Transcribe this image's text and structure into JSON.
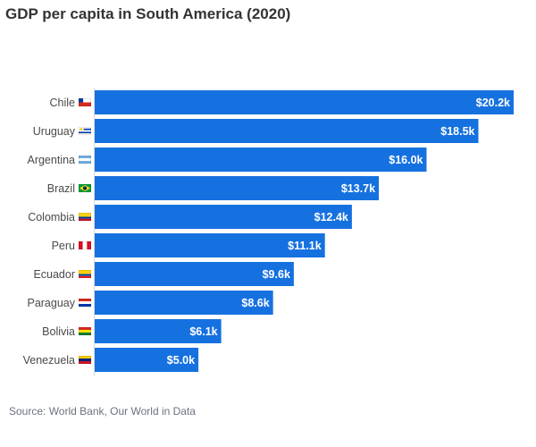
{
  "title": "GDP per capita in South America (2020)",
  "source": "Source: World Bank, Our World in Data",
  "colors": {
    "bar": "#1671e0",
    "bar_label": "#ffffff",
    "category_label": "#4a4a4a",
    "axis": "#d9d9d9"
  },
  "chart_data": {
    "type": "bar",
    "orientation": "horizontal",
    "title": "GDP per capita in South America (2020)",
    "xlabel": "",
    "ylabel": "",
    "categories": [
      "Chile",
      "Uruguay",
      "Argentina",
      "Brazil",
      "Colombia",
      "Peru",
      "Ecuador",
      "Paraguay",
      "Bolivia",
      "Venezuela"
    ],
    "flags": [
      {
        "type": "bicolor-h",
        "colors": [
          "#ffffff",
          "#d52b1e"
        ],
        "canton": "#0039a6"
      },
      {
        "type": "stripes-h",
        "colors": [
          "#ffffff",
          "#0038a8",
          "#ffffff",
          "#0038a8",
          "#ffffff"
        ],
        "canton": "#ffffff"
      },
      {
        "type": "tricolor-h",
        "colors": [
          "#74acdf",
          "#ffffff",
          "#74acdf"
        ]
      },
      {
        "type": "brazil",
        "colors": [
          "#009c3b",
          "#ffdf00",
          "#002776"
        ]
      },
      {
        "type": "tricolor-h-weighted",
        "colors": [
          "#fcd116",
          "#003893",
          "#ce1126"
        ]
      },
      {
        "type": "tricolor-v",
        "colors": [
          "#d91023",
          "#ffffff",
          "#d91023"
        ]
      },
      {
        "type": "tricolor-h-weighted",
        "colors": [
          "#ffd100",
          "#034ea2",
          "#ed1c24"
        ]
      },
      {
        "type": "tricolor-h",
        "colors": [
          "#d52b1e",
          "#ffffff",
          "#0038a8"
        ]
      },
      {
        "type": "tricolor-h",
        "colors": [
          "#d52b1e",
          "#f9e300",
          "#007934"
        ]
      },
      {
        "type": "tricolor-h",
        "colors": [
          "#ffcc00",
          "#00247d",
          "#cf142b"
        ]
      }
    ],
    "values": [
      20.2,
      18.5,
      16.0,
      13.7,
      12.4,
      11.1,
      9.6,
      8.6,
      6.1,
      5.0
    ],
    "value_labels": [
      "$20.2k",
      "$18.5k",
      "$16.0k",
      "$13.7k",
      "$12.4k",
      "$11.1k",
      "$9.6k",
      "$8.6k",
      "$6.1k",
      "$5.0k"
    ],
    "unit": "thousand USD",
    "xlim": [
      0,
      20.2
    ],
    "grid": false,
    "legend": "none"
  }
}
